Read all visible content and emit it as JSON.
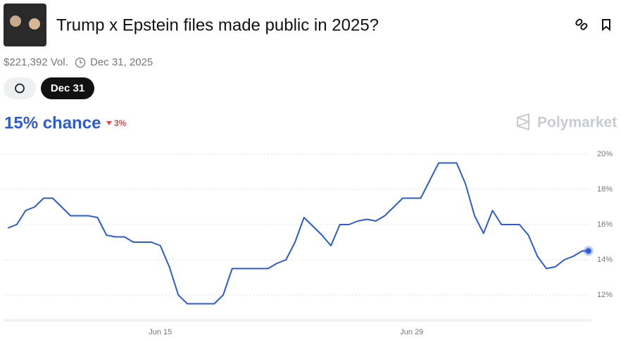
{
  "header": {
    "title": "Trump x Epstein files made public in 2025?"
  },
  "meta": {
    "volume": "$221,392 Vol.",
    "end_date": "Dec 31, 2025"
  },
  "tabs": [
    "Dec 31"
  ],
  "chance": {
    "label": "15% chance",
    "change": "3%"
  },
  "brand": "Polymarket",
  "chart_data": {
    "type": "line",
    "categories": [
      null,
      null,
      null,
      null,
      null,
      null,
      null,
      null,
      null,
      null,
      null,
      null,
      null,
      null,
      null,
      null,
      null,
      "Jun 15",
      null,
      null,
      null,
      null,
      null,
      null,
      null,
      null,
      null,
      null,
      null,
      null,
      null,
      null,
      null,
      null,
      null,
      null,
      null,
      null,
      null,
      null,
      null,
      null,
      null,
      null,
      null,
      "Jun 29",
      null,
      null,
      null,
      null,
      null,
      null,
      null,
      null,
      null,
      null,
      null,
      null,
      null,
      null,
      null,
      null,
      null,
      null,
      null,
      null
    ],
    "series": [
      {
        "color": "#2c5bd6",
        "values": [
          15.8,
          16.0,
          16.8,
          17.0,
          17.5,
          17.5,
          17.0,
          16.5,
          16.5,
          16.5,
          16.4,
          15.4,
          15.3,
          15.3,
          15.0,
          15.0,
          15.0,
          14.8,
          13.6,
          12.0,
          11.5,
          11.5,
          11.5,
          11.5,
          12.0,
          13.5,
          13.5,
          13.5,
          13.5,
          13.5,
          13.8,
          14.0,
          15.0,
          16.4,
          15.9,
          15.4,
          14.8,
          16.0,
          16.0,
          16.2,
          16.3,
          16.2,
          16.5,
          17.0,
          17.5,
          17.5,
          17.5,
          18.5,
          19.5,
          19.5,
          19.5,
          18.3,
          16.5,
          15.5,
          16.8,
          16.0,
          16.0,
          16.0,
          15.4,
          14.2,
          13.5,
          13.6,
          14.0,
          14.2,
          14.5,
          14.5
        ]
      }
    ],
    "ylim": [
      10.5,
      20.5
    ],
    "yticks": [
      {
        "value": 12,
        "label": "12%"
      },
      {
        "value": 14,
        "label": "14%"
      },
      {
        "value": 16,
        "label": "16%"
      },
      {
        "value": 18,
        "label": "18%"
      },
      {
        "value": 20,
        "label": "20%"
      }
    ],
    "grid": true
  }
}
